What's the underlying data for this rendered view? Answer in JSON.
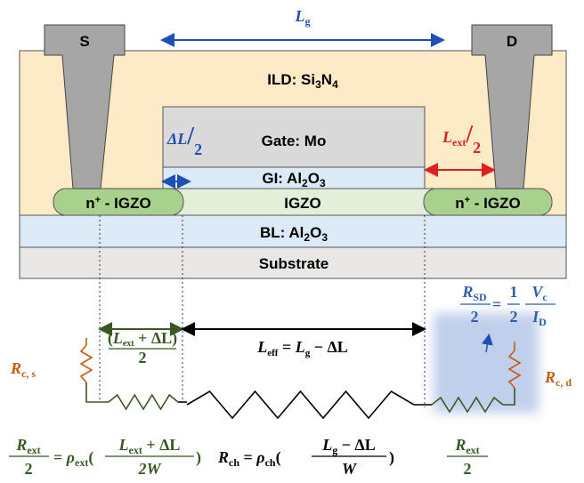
{
  "layers": {
    "ild": [
      "ILD: Si",
      "3",
      "N",
      "4"
    ],
    "gate": "Gate: Mo",
    "gi": [
      "GI: Al",
      "2",
      "O",
      "3"
    ],
    "igzo": "IGZO",
    "n_plus_left": [
      "n",
      "+",
      " - IGZO"
    ],
    "n_plus_right": [
      "n",
      "+",
      " - IGZO"
    ],
    "bl": [
      "BL: Al",
      "2",
      "O",
      "3"
    ],
    "substrate": "Substrate"
  },
  "contacts": {
    "source": "S",
    "drain": "D"
  },
  "dimensions": {
    "lg": [
      "L",
      "g"
    ],
    "delta_l_half": [
      "ΔL",
      "/",
      "2"
    ],
    "l_ext_half": [
      "L",
      "ext",
      "/",
      "2"
    ],
    "l_eff": [
      "L",
      "eff",
      " = ",
      "L",
      "g",
      " − ΔL"
    ],
    "contact_len": [
      "(",
      "L",
      "ext",
      " + ΔL",
      ")",
      "2"
    ]
  },
  "circuit": {
    "rc_s": [
      "R",
      "c, s"
    ],
    "rc_d": [
      "R",
      "c, d"
    ],
    "rsd": [
      "R",
      "SD",
      "2",
      "=",
      "1",
      "2",
      "V",
      "c",
      "I",
      "D"
    ]
  },
  "equations": {
    "rext_left": [
      "R",
      "ext",
      "2",
      "= ",
      "ρ",
      "ext",
      "(",
      "L",
      "ext",
      " + ΔL",
      "2W",
      ")"
    ],
    "rch": [
      "R",
      "ch",
      " = ",
      "ρ",
      "ch",
      "(",
      "L",
      "g",
      " − ΔL",
      "W",
      ")"
    ],
    "rext_right": [
      "R",
      "ext",
      "2"
    ]
  }
}
